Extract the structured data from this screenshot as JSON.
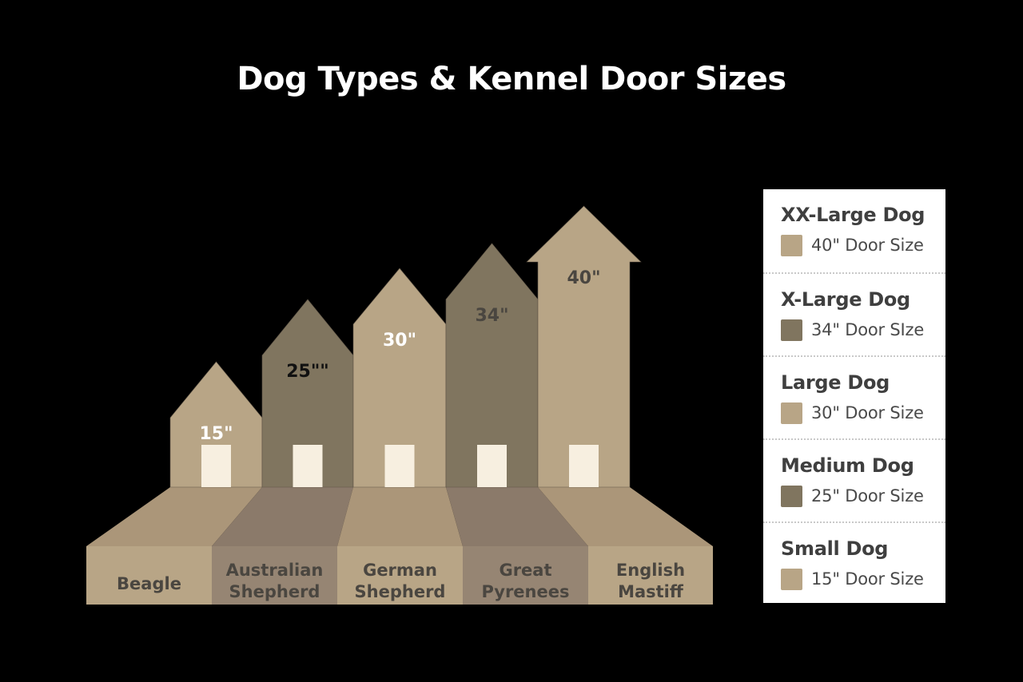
{
  "title": "Dog Types & Kennel Door Sizes",
  "colors": {
    "background": "#000000",
    "light_house": "#b8a586",
    "dark_house": "#80755f",
    "door": "#f7efe0",
    "floor_light": "#ab9679",
    "floor_dark": "#8b7a6a",
    "panel_light": "#b8a586",
    "panel_dark": "#968573"
  },
  "chart_data": {
    "type": "bar",
    "categories": [
      "Beagle",
      "Australian Shepherd",
      "German Shepherd",
      "Great Pyrenees",
      "English Mastiff"
    ],
    "values": [
      15,
      25,
      30,
      34,
      40
    ],
    "unit": "inches",
    "series": [
      {
        "values": [
          15,
          25,
          30,
          34,
          40
        ]
      }
    ]
  },
  "houses": [
    {
      "value_label": "15\"",
      "shade": "light",
      "label_color": "#ffffff",
      "breed_lines": [
        "Beagle"
      ]
    },
    {
      "value_label": "25\"\"",
      "shade": "dark",
      "label_color": "#111111",
      "breed_lines": [
        "Australian",
        "Shepherd"
      ]
    },
    {
      "value_label": "30\"",
      "shade": "light",
      "label_color": "#ffffff",
      "breed_lines": [
        "German",
        "Shepherd"
      ]
    },
    {
      "value_label": "34\"",
      "shade": "dark",
      "label_color": "#4a4640",
      "breed_lines": [
        "Great",
        "Pyrenees"
      ]
    },
    {
      "value_label": "40\"",
      "shade": "light",
      "label_color": "#4a4640",
      "breed_lines": [
        "English",
        "Mastiff"
      ]
    }
  ],
  "legend": [
    {
      "name": "XX-Large Dog",
      "size": "40\" Door Size",
      "color": "#b8a586"
    },
    {
      "name": "X-Large Dog",
      "size": "34\" Door SIze",
      "color": "#80755f"
    },
    {
      "name": "Large Dog",
      "size": "30\" Door Size",
      "color": "#b8a586"
    },
    {
      "name": "Medium Dog",
      "size": "25\" Door Size",
      "color": "#80755f"
    },
    {
      "name": "Small Dog",
      "size": "15\" Door Size",
      "color": "#b8a586"
    }
  ]
}
